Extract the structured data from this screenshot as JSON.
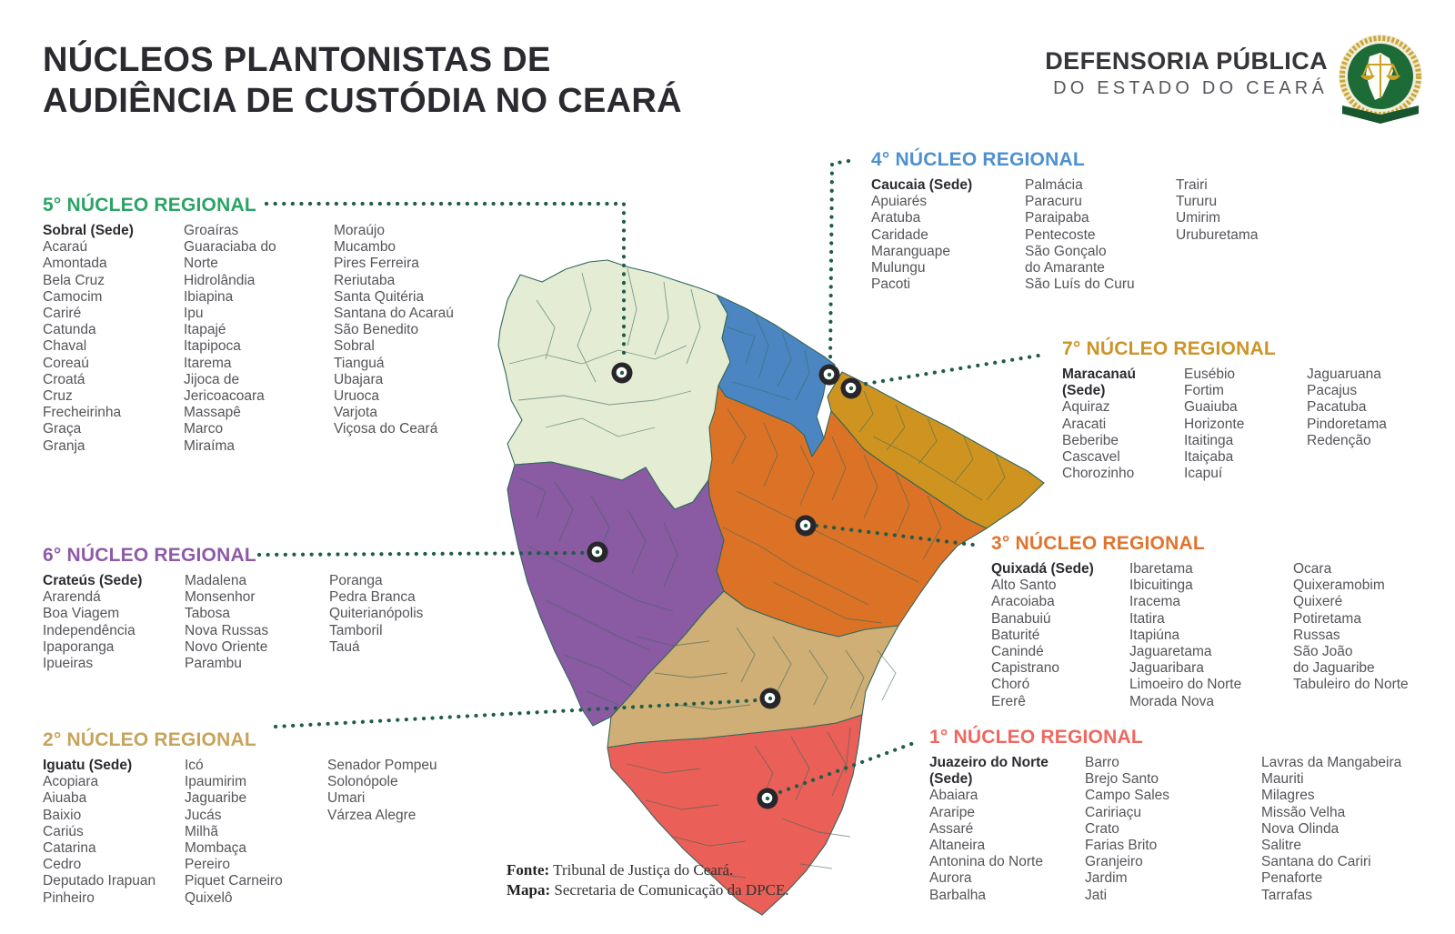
{
  "title": {
    "line1": "NÚCLEOS PLANTONISTAS DE",
    "line2": "AUDIÊNCIA DE CUSTÓDIA NO CEARÁ"
  },
  "logo": {
    "name_line1": "DEFENSORIA PÚBLICA",
    "name_line2": "DO ESTADO DO CEARÁ",
    "emblem": "scales-of-justice-seal",
    "emblem_green": "#1d6c38",
    "emblem_gold": "#c9a227"
  },
  "source": {
    "label1": "Fonte:",
    "text1": " Tribunal de Justiça do Ceará.",
    "label2": "Mapa:",
    "text2": " Secretaria de Comunicação da DPCE."
  },
  "map": {
    "state": "Ceará",
    "connector_color": "#1f5c49",
    "border_color": "#33675c",
    "marker": {
      "ring": "#26262b",
      "center": "#ffffff",
      "dot": "#1f5c49"
    },
    "regions": {
      "nucleo5": {
        "label": "5º núcleo (Sobral)",
        "color": "#e4ecd3"
      },
      "nucleo4": {
        "label": "4º núcleo (Caucaia)",
        "color": "#4c86c2"
      },
      "nucleo7": {
        "label": "7º núcleo (Maracanaú)",
        "color": "#cf9420"
      },
      "nucleo3": {
        "label": "3º núcleo (Quixadá)",
        "color": "#dc7226"
      },
      "nucleo6": {
        "label": "6º núcleo (Crateús)",
        "color": "#8a5aa3"
      },
      "nucleo2": {
        "label": "2º núcleo (Iguatu)",
        "color": "#cfaf75"
      },
      "nucleo1": {
        "label": "1º núcleo (Juazeiro do Norte)",
        "color": "#ea5f57"
      }
    }
  },
  "nucleos": [
    {
      "id": "5",
      "title": "5° NÚCLEO REGIONAL",
      "color": "#2aa365",
      "region": "nucleo5",
      "columns": [
        [
          "Sobral (Sede)",
          "Acaraú",
          "Amontada",
          "Bela Cruz",
          "Camocim",
          "Cariré",
          "Catunda",
          "Chaval",
          "Coreaú",
          "Croatá",
          "Cruz",
          "Frecheirinha",
          "Graça",
          "Granja"
        ],
        [
          "Groaíras",
          "Guaraciaba do\nNorte",
          "Hidrolândia",
          "Ibiapina",
          "Ipu",
          "Itapajé",
          "Itapipoca",
          "Itarema",
          "Jijoca de\nJericoacoara",
          "Massapê",
          "Marco",
          "Miraíma"
        ],
        [
          "Moraújo",
          "Mucambo",
          "Pires Ferreira",
          "Reriutaba",
          "Santa Quitéria",
          "Santana do Acaraú",
          "São Benedito",
          "Sobral",
          "Tianguá",
          "Ubajara",
          "Uruoca",
          "Varjota",
          "Viçosa do Ceará"
        ]
      ]
    },
    {
      "id": "6",
      "title": "6° NÚCLEO REGIONAL",
      "color": "#8d5aa8",
      "region": "nucleo6",
      "columns": [
        [
          "Crateús (Sede)",
          "Ararendá",
          "Boa Viagem",
          "Independência",
          "Ipaporanga",
          "Ipueiras"
        ],
        [
          "Madalena",
          "Monsenhor\nTabosa",
          "Nova Russas",
          "Novo Oriente",
          "Parambu"
        ],
        [
          "Poranga",
          "Pedra Branca",
          "Quiterianópolis",
          "Tamboril",
          "Tauá"
        ]
      ]
    },
    {
      "id": "2",
      "title": "2° NÚCLEO REGIONAL",
      "color": "#c7a45b",
      "region": "nucleo2",
      "columns": [
        [
          "Iguatu (Sede)",
          "Acopiara",
          "Aiuaba",
          "Baixio",
          "Cariús",
          "Catarina",
          "Cedro",
          "Deputado Irapuan\nPinheiro"
        ],
        [
          "Icó",
          "Ipaumirim",
          "Jaguaribe",
          "Jucás",
          "Milhã",
          "Mombaça",
          "Pereiro",
          "Piquet Carneiro",
          "Quixelô"
        ],
        [
          "Senador Pompeu",
          "Solonópole",
          "Umari",
          "Várzea Alegre"
        ]
      ]
    },
    {
      "id": "4",
      "title": "4° NÚCLEO REGIONAL",
      "color": "#4e90d0",
      "region": "nucleo4",
      "columns": [
        [
          "Caucaia (Sede)",
          "Apuiarés",
          "Aratuba",
          "Caridade",
          "Maranguape",
          "Mulungu",
          "Pacoti"
        ],
        [
          "Palmácia",
          "Paracuru",
          "Paraipaba",
          "Pentecoste",
          "São Gonçalo\ndo Amarante",
          "São Luís do Curu"
        ],
        [
          "Trairi",
          "Tururu",
          "Umirim",
          "Uruburetama"
        ]
      ]
    },
    {
      "id": "7",
      "title": "7° NÚCLEO REGIONAL",
      "color": "#cd9427",
      "region": "nucleo7",
      "columns": [
        [
          "Maracanaú\n(Sede)",
          "Aquiraz",
          "Aracati",
          "Beberibe",
          "Cascavel",
          "Chorozinho"
        ],
        [
          "Eusébio",
          "Fortim",
          "Guaiuba",
          "Horizonte",
          "Itaitinga",
          "Itaiçaba",
          "Icapuí"
        ],
        [
          "Jaguaruana",
          "Pacajus",
          "Pacatuba",
          "Pindoretama",
          "Redenção"
        ]
      ]
    },
    {
      "id": "3",
      "title": "3° NÚCLEO REGIONAL",
      "color": "#e0742e",
      "region": "nucleo3",
      "columns": [
        [
          "Quixadá (Sede)",
          "Alto Santo",
          "Aracoiaba",
          "Banabuiú",
          "Baturité",
          "Canindé",
          "Capistrano",
          "Choró",
          "Ererê"
        ],
        [
          "Ibaretama",
          "Ibicuitinga",
          "Iracema",
          "Itatira",
          "Itapiúna",
          "Jaguaretama",
          "Jaguaribara",
          "Limoeiro do Norte",
          "Morada Nova"
        ],
        [
          "Ocara",
          "Quixeramobim",
          "Quixeré",
          "Potiretama",
          "Russas",
          "São João\ndo Jaguaribe",
          "Tabuleiro do Norte"
        ]
      ]
    },
    {
      "id": "1",
      "title": "1° NÚCLEO REGIONAL",
      "color": "#ef685f",
      "region": "nucleo1",
      "columns": [
        [
          "Juazeiro do Norte\n(Sede)",
          "Abaiara",
          "Araripe",
          "Assaré",
          "Altaneira",
          "Antonina do Norte",
          "Aurora",
          "Barbalha"
        ],
        [
          "Barro",
          "Brejo Santo",
          "Campo Sales",
          "Caririaçu",
          "Crato",
          "Farias Brito",
          "Granjeiro",
          "Jardim",
          "Jati"
        ],
        [
          "Lavras da Mangabeira",
          "Mauriti",
          "Milagres",
          "Missão Velha",
          "Nova Olinda",
          "Salitre",
          "Santana do Cariri",
          "Penaforte",
          "Tarrafas"
        ]
      ]
    }
  ]
}
